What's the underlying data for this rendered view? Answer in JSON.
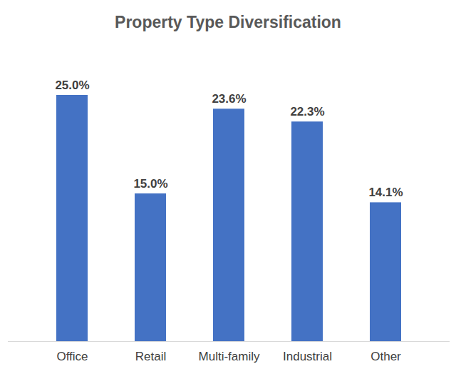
{
  "chart_data": {
    "type": "bar",
    "title": "Property Type Diversification",
    "categories": [
      "Office",
      "Retail",
      "Multi-family",
      "Industrial",
      "Other"
    ],
    "values": [
      25.0,
      15.0,
      23.6,
      22.3,
      14.1
    ],
    "value_labels": [
      "25.0%",
      "15.0%",
      "23.6%",
      "22.3%",
      "14.1%"
    ],
    "color": "#4472c4",
    "ylim": [
      0,
      25
    ],
    "grid": false,
    "data_labels": true,
    "tick_labels": "x"
  }
}
